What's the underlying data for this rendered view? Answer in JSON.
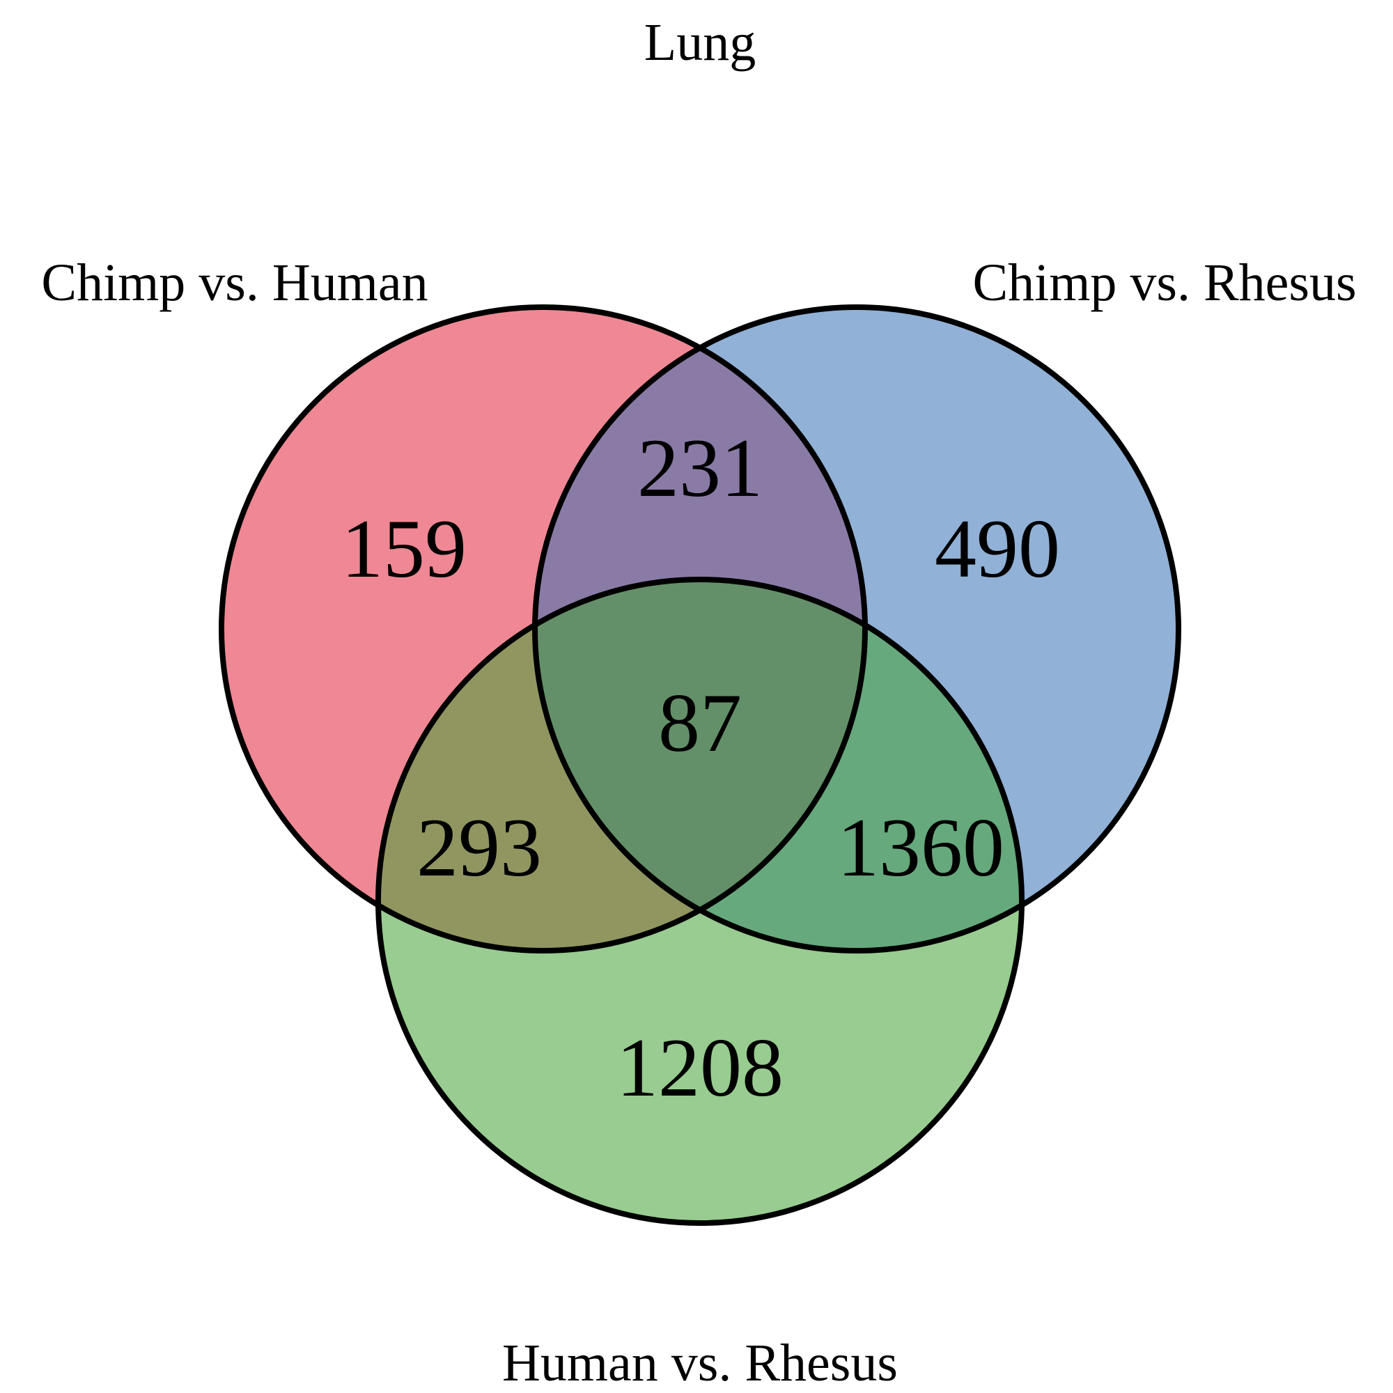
{
  "title": "Lung",
  "sets": [
    {
      "id": "chimp_vs_human",
      "label": "Chimp vs. Human",
      "color": "#e2273c"
    },
    {
      "id": "chimp_vs_rhesus",
      "label": "Chimp vs. Rhesus",
      "color": "#3771b4"
    },
    {
      "id": "human_vs_rhesus",
      "label": "Human vs. Rhesus",
      "color": "#43a235"
    }
  ],
  "fill_opacity": 0.55,
  "regions": {
    "chimp_vs_human_only": "159",
    "chimp_vs_rhesus_only": "490",
    "human_vs_rhesus_only": "1208",
    "chimp_vs_human_and_chimp_vs_rhesus": "231",
    "chimp_vs_human_and_human_vs_rhesus": "293",
    "chimp_vs_rhesus_and_human_vs_rhesus": "1360",
    "all_three": "87"
  }
}
